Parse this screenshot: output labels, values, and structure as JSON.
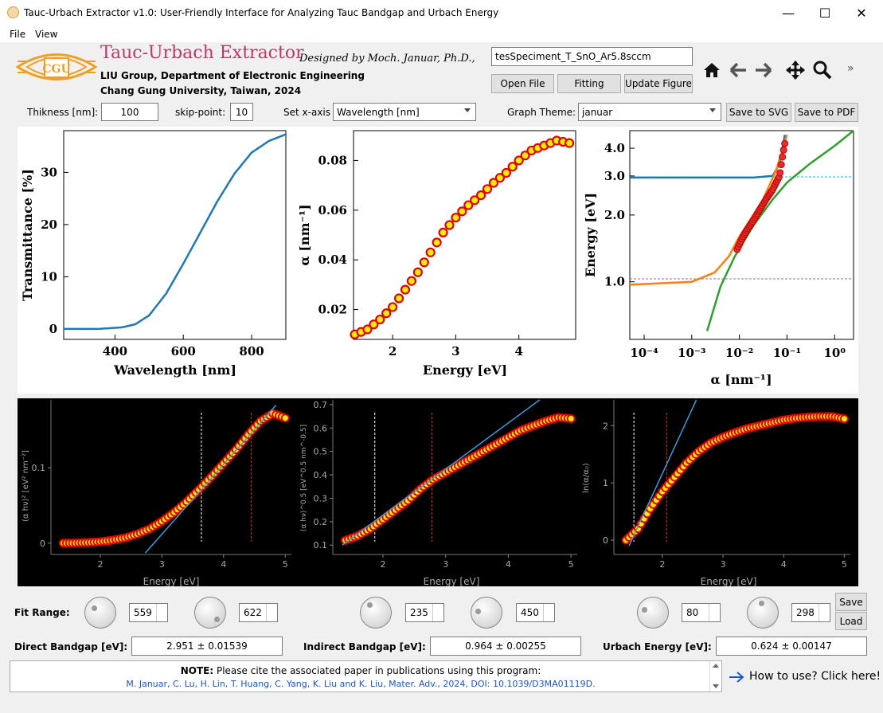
{
  "window": {
    "title": "Tauc-Urbach Extractor v1.0: User-Friendly Interface for Analyzing Tauc Bandgap and Urbach Energy",
    "controls": {
      "minimize": "—",
      "maximize": "☐",
      "close": "✕"
    }
  },
  "menu": [
    "File",
    "View"
  ],
  "header": {
    "logo_text": "CGU",
    "app_name": "Tauc-Urbach Extractor",
    "designer": "Designed by Moch. Januar, Ph.D.,",
    "affiliation1": "LIU Group, Department of Electronic Engineering",
    "affiliation2": "Chang Gung University, Taiwan, 2024",
    "filename": "tesSpeciment_T_SnO_Ar5.8sccm",
    "open_file": "Open File",
    "fitting": "Fitting",
    "update_figure": "Update Figure",
    "toolbar_more": "»"
  },
  "params": {
    "thickness_label": "Thikness [nm]:",
    "thickness_value": "100",
    "skip_label": "skip-point:",
    "skip_value": "10",
    "xaxis_label": "Set x-axis",
    "xaxis_value": "Wavelength [nm]",
    "theme_label": "Graph Theme:",
    "theme_value": "januar",
    "save_svg": "Save to SVG",
    "save_pdf": "Save to PDF"
  },
  "top_plots": {
    "p1": {
      "xlabel": "Wavelength [nm]",
      "ylabel": "Transmittance [%]",
      "xticks": [
        "400",
        "600",
        "800"
      ],
      "yticks": [
        "0",
        "10",
        "20",
        "30"
      ]
    },
    "p2": {
      "xlabel": "Energy [eV]",
      "ylabel": "α [nm⁻¹]",
      "xticks": [
        "2",
        "3",
        "4"
      ],
      "yticks": [
        "0.02",
        "0.04",
        "0.06",
        "0.08"
      ]
    },
    "p3": {
      "xlabel": "α [nm⁻¹]",
      "ylabel": "Energy [eV]",
      "xticks": [
        "10⁻⁴",
        "10⁻³",
        "10⁻²",
        "10⁻¹",
        "10⁰"
      ],
      "yticks": [
        "1.0",
        "2.0",
        "3.0",
        "4.0"
      ]
    }
  },
  "bottom_plots": {
    "b1": {
      "xlabel": "Energy [eV]",
      "ylabel": "(α hν)² [eV² nm⁻²]",
      "xticks": [
        "2",
        "3",
        "4",
        "5"
      ],
      "yticks": [
        "0",
        "0.1"
      ]
    },
    "b2": {
      "xlabel": "Energy [eV]",
      "ylabel": "(α hν)^0.5 [eV^0.5 nm^-0.5]",
      "xticks": [
        "2",
        "3",
        "4",
        "5"
      ],
      "yticks": [
        "0.1",
        "0.2",
        "0.3",
        "0.4",
        "0.5",
        "0.6",
        "0.7"
      ]
    },
    "b3": {
      "xlabel": "Energy [eV]",
      "ylabel": "ln(α/α₀)",
      "xticks": [
        "2",
        "3",
        "4",
        "5"
      ],
      "yticks": [
        "0",
        "1",
        "2"
      ]
    }
  },
  "fit": {
    "label": "Fit Range:",
    "values": [
      "559",
      "622",
      "235",
      "450",
      "80",
      "298"
    ],
    "save": "Save",
    "load": "Load"
  },
  "results": {
    "direct_label": "Direct Bandgap [eV]:",
    "direct_value": "2.951 ± 0.01539",
    "indirect_label": "Indirect Bandgap [eV]:",
    "indirect_value": "0.964 ± 0.00255",
    "urbach_label": "Urbach Energy [eV]:",
    "urbach_value": "0.624 ± 0.00147"
  },
  "note": {
    "prefix": "NOTE:",
    "text": " Please cite the associated paper in publications using this program:",
    "citation": "M. Januar, C. Lu, H. Lin, T. Huang, C. Yang, K. Liu and K. Liu, Mater. Adv., 2024, DOI: 10.1039/D3MA01119D.",
    "help": "How to use? Click here!"
  },
  "colors": {
    "accent_title": "#c0356a",
    "logo": "#f0a020",
    "marker_fill": "#ffee00",
    "marker_edge": "#e00000",
    "line_blue": "#1f77b4",
    "line_orange": "#ff7f0e",
    "line_green": "#2ca02c",
    "link": "#1a56c8"
  },
  "chart_data": [
    {
      "type": "line",
      "title": "",
      "xlabel": "Wavelength [nm]",
      "ylabel": "Transmittance [%]",
      "xlim": [
        250,
        900
      ],
      "ylim": [
        -2,
        38
      ],
      "x": [
        250,
        350,
        420,
        460,
        500,
        550,
        600,
        650,
        700,
        750,
        800,
        850,
        900
      ],
      "series": [
        {
          "values": [
            0,
            0,
            0.3,
            0.9,
            2.6,
            6.8,
            12.5,
            18.5,
            24.5,
            29.8,
            33.8,
            36.0,
            37.3
          ]
        }
      ]
    },
    {
      "type": "scatter",
      "title": "",
      "xlabel": "Energy [eV]",
      "ylabel": "α [nm⁻¹]",
      "xlim": [
        1.38,
        4.9
      ],
      "ylim": [
        0.008,
        0.092
      ],
      "x": [
        1.4,
        1.6,
        1.8,
        2.0,
        2.2,
        2.4,
        2.6,
        2.8,
        3.0,
        3.2,
        3.4,
        3.6,
        3.8,
        4.0,
        4.2,
        4.4,
        4.6,
        4.8
      ],
      "series": [
        {
          "values": [
            0.01,
            0.012,
            0.016,
            0.021,
            0.028,
            0.035,
            0.043,
            0.051,
            0.057,
            0.062,
            0.066,
            0.071,
            0.075,
            0.08,
            0.084,
            0.086,
            0.088,
            0.087
          ]
        }
      ]
    },
    {
      "type": "line",
      "title": "",
      "xlabel": "α [nm⁻¹]",
      "ylabel": "Energy [eV]",
      "log_x": true,
      "log_y": true,
      "xlim": [
        5e-05,
        2.5
      ],
      "ylim": [
        0.55,
        4.8
      ],
      "series": [
        {
          "x": [
            5e-05,
            0.001,
            0.02,
            0.05,
            0.07,
            0.09
          ],
          "values": [
            2.95,
            2.95,
            2.95,
            3.0,
            3.4,
            4.6
          ]
        },
        {
          "x": [
            5e-05,
            0.001,
            0.003,
            0.006,
            0.01,
            0.03,
            0.06,
            0.1
          ],
          "values": [
            0.97,
            1.0,
            1.1,
            1.3,
            1.6,
            2.3,
            3.2,
            4.6
          ]
        },
        {
          "x": [
            0.0021,
            0.004,
            0.008,
            0.02,
            0.05,
            0.1,
            0.3,
            1.0,
            2.5
          ],
          "values": [
            0.6,
            0.95,
            1.3,
            1.8,
            2.35,
            2.8,
            3.4,
            4.1,
            4.8
          ]
        },
        {
          "x": [
            0.009,
            0.012,
            0.02,
            0.03,
            0.05,
            0.07,
            0.09
          ],
          "values": [
            1.4,
            1.6,
            1.9,
            2.2,
            2.6,
            3.0,
            4.2
          ]
        }
      ]
    },
    {
      "type": "scatter",
      "title": "",
      "xlabel": "Energy [eV]",
      "ylabel": "(α hν)² [eV² nm⁻²]",
      "xlim": [
        1.2,
        5.1
      ],
      "ylim": [
        -0.015,
        0.19
      ],
      "x": [
        1.4,
        1.6,
        1.8,
        2.0,
        2.2,
        2.4,
        2.6,
        2.8,
        3.0,
        3.2,
        3.4,
        3.6,
        3.8,
        4.0,
        4.2,
        4.4,
        4.6,
        4.8,
        5.0
      ],
      "series": [
        {
          "values": [
            0.0,
            0.0003,
            0.0008,
            0.002,
            0.004,
            0.007,
            0.012,
            0.019,
            0.029,
            0.041,
            0.055,
            0.071,
            0.088,
            0.106,
            0.124,
            0.144,
            0.162,
            0.172,
            0.166
          ]
        }
      ],
      "fit_line": {
        "x": [
          2.73,
          4.85
        ],
        "values": [
          -0.013,
          0.183
        ]
      },
      "markers": [
        3.64,
        4.45
      ]
    },
    {
      "type": "scatter",
      "title": "",
      "xlabel": "Energy [eV]",
      "ylabel": "(α hν)^0.5 [eV^0.5 nm^-0.5]",
      "xlim": [
        1.2,
        5.1
      ],
      "ylim": [
        0.06,
        0.72
      ],
      "x": [
        1.4,
        1.6,
        1.8,
        2.0,
        2.2,
        2.4,
        2.6,
        2.8,
        3.0,
        3.2,
        3.4,
        3.6,
        3.8,
        4.0,
        4.2,
        4.4,
        4.6,
        4.8,
        5.0
      ],
      "series": [
        {
          "values": [
            0.12,
            0.14,
            0.17,
            0.21,
            0.25,
            0.29,
            0.34,
            0.38,
            0.41,
            0.44,
            0.47,
            0.5,
            0.53,
            0.56,
            0.59,
            0.61,
            0.63,
            0.645,
            0.64
          ]
        }
      ],
      "fit_line": {
        "x": [
          1.35,
          4.5
        ],
        "values": [
          0.1,
          0.72
        ]
      },
      "markers": [
        1.87,
        2.78
      ]
    },
    {
      "type": "scatter",
      "title": "",
      "xlabel": "Energy [eV]",
      "ylabel": "ln(α/α₀)",
      "xlim": [
        1.2,
        5.1
      ],
      "ylim": [
        -0.25,
        2.45
      ],
      "x": [
        1.4,
        1.6,
        1.8,
        2.0,
        2.2,
        2.4,
        2.6,
        2.8,
        3.0,
        3.2,
        3.4,
        3.6,
        3.8,
        4.0,
        4.2,
        4.4,
        4.6,
        4.8,
        5.0
      ],
      "series": [
        {
          "values": [
            0.0,
            0.2,
            0.55,
            0.85,
            1.1,
            1.35,
            1.55,
            1.7,
            1.8,
            1.88,
            1.95,
            2.0,
            2.05,
            2.1,
            2.13,
            2.15,
            2.16,
            2.16,
            2.12
          ]
        }
      ],
      "fit_line": {
        "x": [
          1.45,
          2.56
        ],
        "values": [
          -0.1,
          2.45
        ]
      },
      "markers": [
        1.53,
        2.07
      ]
    }
  ]
}
